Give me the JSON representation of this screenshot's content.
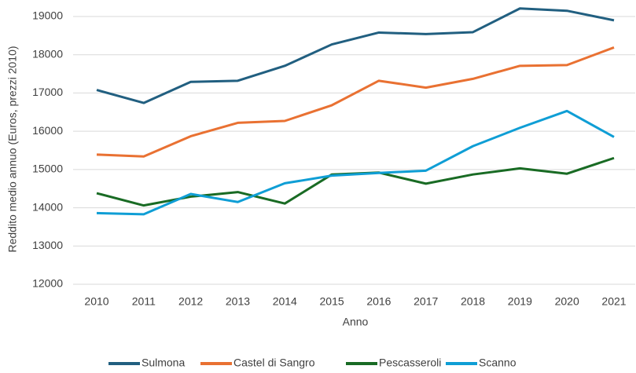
{
  "chart_data": {
    "type": "line",
    "y_label": "Reddito medio annuo (Euros, prezzi 2010)",
    "x_label": "Anno",
    "categories": [
      "2010",
      "2011",
      "2012",
      "2013",
      "2014",
      "2015",
      "2016",
      "2017",
      "2018",
      "2019",
      "2020",
      "2021"
    ],
    "series": [
      {
        "name": "Sulmona",
        "color": "#215f80",
        "values": [
          17080,
          16740,
          17290,
          17320,
          17710,
          18270,
          18580,
          18540,
          18590,
          19210,
          19150,
          18900
        ]
      },
      {
        "name": "Castel di Sangro",
        "color": "#e97132",
        "values": [
          15390,
          15340,
          15870,
          16220,
          16270,
          16680,
          17320,
          17140,
          17370,
          17710,
          17730,
          18190
        ]
      },
      {
        "name": "Pescasseroli",
        "color": "#196b24",
        "values": [
          14380,
          14060,
          14290,
          14410,
          14110,
          14870,
          14920,
          14630,
          14870,
          15030,
          14890,
          15300
        ]
      },
      {
        "name": "Scanno",
        "color": "#0f9ed5",
        "values": [
          13860,
          13830,
          14360,
          14150,
          14640,
          14840,
          14910,
          14970,
          15610,
          16090,
          16530,
          15850
        ]
      }
    ],
    "ylim": [
      12000,
      19400
    ],
    "yticks": [
      12000,
      13000,
      14000,
      15000,
      16000,
      17000,
      18000,
      19000
    ],
    "grid": true,
    "legend": "bottom"
  }
}
